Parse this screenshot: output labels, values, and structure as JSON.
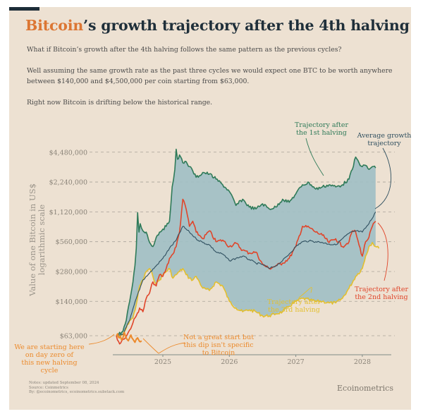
{
  "header": {
    "title_accent": "Bitcoin",
    "title_rest": "’s growth trajectory after the 4th halving",
    "paragraphs": [
      "What if Bitcoin’s growth after the 4th halving follows the same pattern as the previous cycles?",
      "Well assuming the same growth rate as the past three cycles we would expect one BTC to be worth anywhere between $140,000 and $4,500,000 per coin starting from $63,000.",
      "Right now Bitcoin is drifting below the historical range."
    ]
  },
  "footer": {
    "notes": [
      "Notes: updated September 08, 2024",
      "Source: Coinmetrics",
      "By: @ecoinometrics, ecoinometrics.substack.com"
    ],
    "brand": "Ecoinometrics"
  },
  "colors": {
    "first": "#2e7a58",
    "second": "#e0452a",
    "third": "#e3bf2e",
    "average": "#2f4f5f",
    "current": "#ec8a2c",
    "band": "#9fbfc4",
    "accent": "#dc7633"
  },
  "chart_data": {
    "type": "line",
    "title": "Bitcoin’s growth trajectory after the 4th halving",
    "xlabel": "",
    "ylabel": "Value of one Bitcoin in US$ logarithmic scale",
    "yscale": "log",
    "ylim": [
      45000,
      5500000
    ],
    "xlim": [
      2024.3,
      2028.4
    ],
    "grid": true,
    "yticks": [
      {
        "value": 4480000,
        "label": "$4,480,000"
      },
      {
        "value": 2240000,
        "label": "$2,240,000"
      },
      {
        "value": 1120000,
        "label": "$1,120,000"
      },
      {
        "value": 560000,
        "label": "$560,000"
      },
      {
        "value": 280000,
        "label": "$280,000"
      },
      {
        "value": 140000,
        "label": "$140,000"
      },
      {
        "value": 63000,
        "label": "$63,000"
      }
    ],
    "xticks": [
      {
        "value": 2025,
        "label": "2025"
      },
      {
        "value": 2026,
        "label": "2026"
      },
      {
        "value": 2027,
        "label": "2027"
      },
      {
        "value": 2028,
        "label": "2028"
      }
    ],
    "series": [
      {
        "name": "Trajectory after the 1st halving",
        "key": "first",
        "x": [
          2024.3,
          2024.4,
          2024.45,
          2024.5,
          2024.55,
          2024.58,
          2024.6,
          2024.62,
          2024.64,
          2024.66,
          2024.7,
          2024.75,
          2024.8,
          2024.85,
          2024.9,
          2024.95,
          2025.0,
          2025.05,
          2025.1,
          2025.12,
          2025.14,
          2025.18,
          2025.2,
          2025.22,
          2025.25,
          2025.3,
          2025.35,
          2025.4,
          2025.45,
          2025.5,
          2025.55,
          2025.6,
          2025.7,
          2025.8,
          2025.9,
          2026.0,
          2026.1,
          2026.2,
          2026.3,
          2026.4,
          2026.5,
          2026.6,
          2026.7,
          2026.8,
          2026.9,
          2027.0,
          2027.1,
          2027.2,
          2027.3,
          2027.4,
          2027.5,
          2027.6,
          2027.7,
          2027.8,
          2027.85,
          2027.9,
          2027.95,
          2028.0,
          2028.05,
          2028.1,
          2028.15,
          2028.2
        ],
        "y": [
          63000,
          70000,
          90000,
          140000,
          220000,
          320000,
          480000,
          1100000,
          700000,
          850000,
          720000,
          700000,
          550000,
          500000,
          620000,
          700000,
          750000,
          800000,
          900000,
          1300000,
          2000000,
          3000000,
          4800000,
          3800000,
          4200000,
          3500000,
          3600000,
          3200000,
          2900000,
          2500000,
          2600000,
          2800000,
          2700000,
          2400000,
          2100000,
          1800000,
          1300000,
          1500000,
          1250000,
          1200000,
          1350000,
          1200000,
          1250000,
          1500000,
          1400000,
          1700000,
          2100000,
          2200000,
          1900000,
          2000000,
          2100000,
          2000000,
          2100000,
          2400000,
          3000000,
          4000000,
          3500000,
          3200000,
          3300000,
          3000000,
          3200000,
          3100000
        ]
      },
      {
        "name": "Trajectory after the 2nd halving",
        "key": "second",
        "x": [
          2024.3,
          2024.35,
          2024.4,
          2024.45,
          2024.5,
          2024.55,
          2024.6,
          2024.65,
          2024.7,
          2024.75,
          2024.8,
          2024.85,
          2024.9,
          2024.95,
          2025.0,
          2025.05,
          2025.1,
          2025.15,
          2025.2,
          2025.25,
          2025.3,
          2025.35,
          2025.4,
          2025.45,
          2025.5,
          2025.55,
          2025.6,
          2025.7,
          2025.8,
          2025.9,
          2026.0,
          2026.1,
          2026.2,
          2026.3,
          2026.4,
          2026.5,
          2026.6,
          2026.7,
          2026.8,
          2026.9,
          2027.0,
          2027.1,
          2027.2,
          2027.3,
          2027.4,
          2027.5,
          2027.6,
          2027.7,
          2027.8,
          2027.85,
          2027.9,
          2027.95,
          2028.0,
          2028.05,
          2028.1,
          2028.15,
          2028.2
        ],
        "y": [
          63000,
          52000,
          58000,
          62000,
          72000,
          85000,
          100000,
          120000,
          110000,
          150000,
          170000,
          220000,
          200000,
          260000,
          250000,
          300000,
          380000,
          420000,
          500000,
          700000,
          1500000,
          1200000,
          800000,
          900000,
          700000,
          650000,
          600000,
          720000,
          560000,
          580000,
          500000,
          540000,
          460000,
          430000,
          440000,
          330000,
          300000,
          320000,
          340000,
          380000,
          500000,
          800000,
          780000,
          700000,
          650000,
          550000,
          600000,
          500000,
          560000,
          720000,
          700000,
          520000,
          400000,
          560000,
          620000,
          800000,
          900000
        ]
      },
      {
        "name": "Trajectory after the 3rd halving",
        "key": "third",
        "x": [
          2024.3,
          2024.35,
          2024.4,
          2024.45,
          2024.5,
          2024.55,
          2024.6,
          2024.65,
          2024.7,
          2024.75,
          2024.8,
          2024.85,
          2024.9,
          2024.95,
          2025.0,
          2025.05,
          2025.1,
          2025.15,
          2025.2,
          2025.25,
          2025.3,
          2025.35,
          2025.4,
          2025.45,
          2025.5,
          2025.55,
          2025.6,
          2025.7,
          2025.8,
          2025.9,
          2026.0,
          2026.1,
          2026.2,
          2026.3,
          2026.4,
          2026.5,
          2026.6,
          2026.7,
          2026.8,
          2026.9,
          2027.0,
          2027.1,
          2027.2,
          2027.3,
          2027.4,
          2027.5,
          2027.6,
          2027.7,
          2027.8,
          2027.9,
          2028.0,
          2028.05,
          2028.1,
          2028.15,
          2028.2,
          2028.25
        ],
        "y": [
          63000,
          60000,
          65000,
          75000,
          90000,
          95000,
          130000,
          200000,
          230000,
          280000,
          300000,
          250000,
          210000,
          230000,
          260000,
          280000,
          300000,
          240000,
          260000,
          280000,
          300000,
          260000,
          240000,
          230000,
          250000,
          220000,
          190000,
          180000,
          220000,
          200000,
          140000,
          120000,
          110000,
          115000,
          110000,
          100000,
          100000,
          105000,
          110000,
          125000,
          140000,
          150000,
          145000,
          140000,
          140000,
          135000,
          135000,
          150000,
          190000,
          250000,
          300000,
          400000,
          500000,
          550000,
          500000,
          480000
        ]
      },
      {
        "name": "Average growth trajectory",
        "key": "average",
        "x": [
          2024.3,
          2024.4,
          2024.5,
          2024.6,
          2024.7,
          2024.8,
          2024.9,
          2025.0,
          2025.1,
          2025.2,
          2025.3,
          2025.4,
          2025.5,
          2025.6,
          2025.7,
          2025.8,
          2025.9,
          2026.0,
          2026.1,
          2026.2,
          2026.3,
          2026.4,
          2026.5,
          2026.6,
          2026.7,
          2026.8,
          2026.9,
          2027.0,
          2027.1,
          2027.2,
          2027.3,
          2027.4,
          2027.5,
          2027.6,
          2027.7,
          2027.8,
          2027.9,
          2028.0,
          2028.1,
          2028.2
        ],
        "y": [
          63000,
          65000,
          90000,
          150000,
          230000,
          270000,
          320000,
          380000,
          480000,
          580000,
          800000,
          700000,
          600000,
          550000,
          520000,
          440000,
          420000,
          360000,
          380000,
          400000,
          370000,
          340000,
          330000,
          300000,
          320000,
          360000,
          420000,
          500000,
          560000,
          570000,
          560000,
          550000,
          530000,
          520000,
          600000,
          680000,
          720000,
          700000,
          850000,
          1120000
        ]
      },
      {
        "name": "Current cycle (4th halving)",
        "key": "current",
        "x": [
          2024.3,
          2024.32,
          2024.34,
          2024.36,
          2024.38,
          2024.4,
          2024.42,
          2024.44,
          2024.46,
          2024.48,
          2024.5,
          2024.52,
          2024.55,
          2024.58,
          2024.62,
          2024.65,
          2024.68
        ],
        "y": [
          63000,
          66000,
          60000,
          62000,
          57000,
          60000,
          68000,
          62000,
          58000,
          56000,
          60000,
          64000,
          58000,
          54000,
          60000,
          55000,
          56000
        ]
      }
    ],
    "band": {
      "name": "Historical range",
      "upper": "first",
      "lower": "third"
    },
    "annotations": [
      {
        "text": [
          "Trajectory after",
          "the 1st halving"
        ],
        "color_key": "first"
      },
      {
        "text": [
          "Average growth",
          "trajectory"
        ],
        "color_key": "average"
      },
      {
        "text": [
          "Trajectory after",
          "the 2nd halving"
        ],
        "color_key": "second"
      },
      {
        "text": [
          "Trajectory after",
          "the 3rd halving"
        ],
        "color_key": "third"
      },
      {
        "text": [
          "Not a great start but",
          "this dip isn't specific",
          "to Bitcoin"
        ],
        "color_key": "current"
      },
      {
        "text": [
          "We are starting here",
          "on day zero of",
          "this new halving",
          "cycle"
        ],
        "color_key": "current"
      }
    ]
  }
}
